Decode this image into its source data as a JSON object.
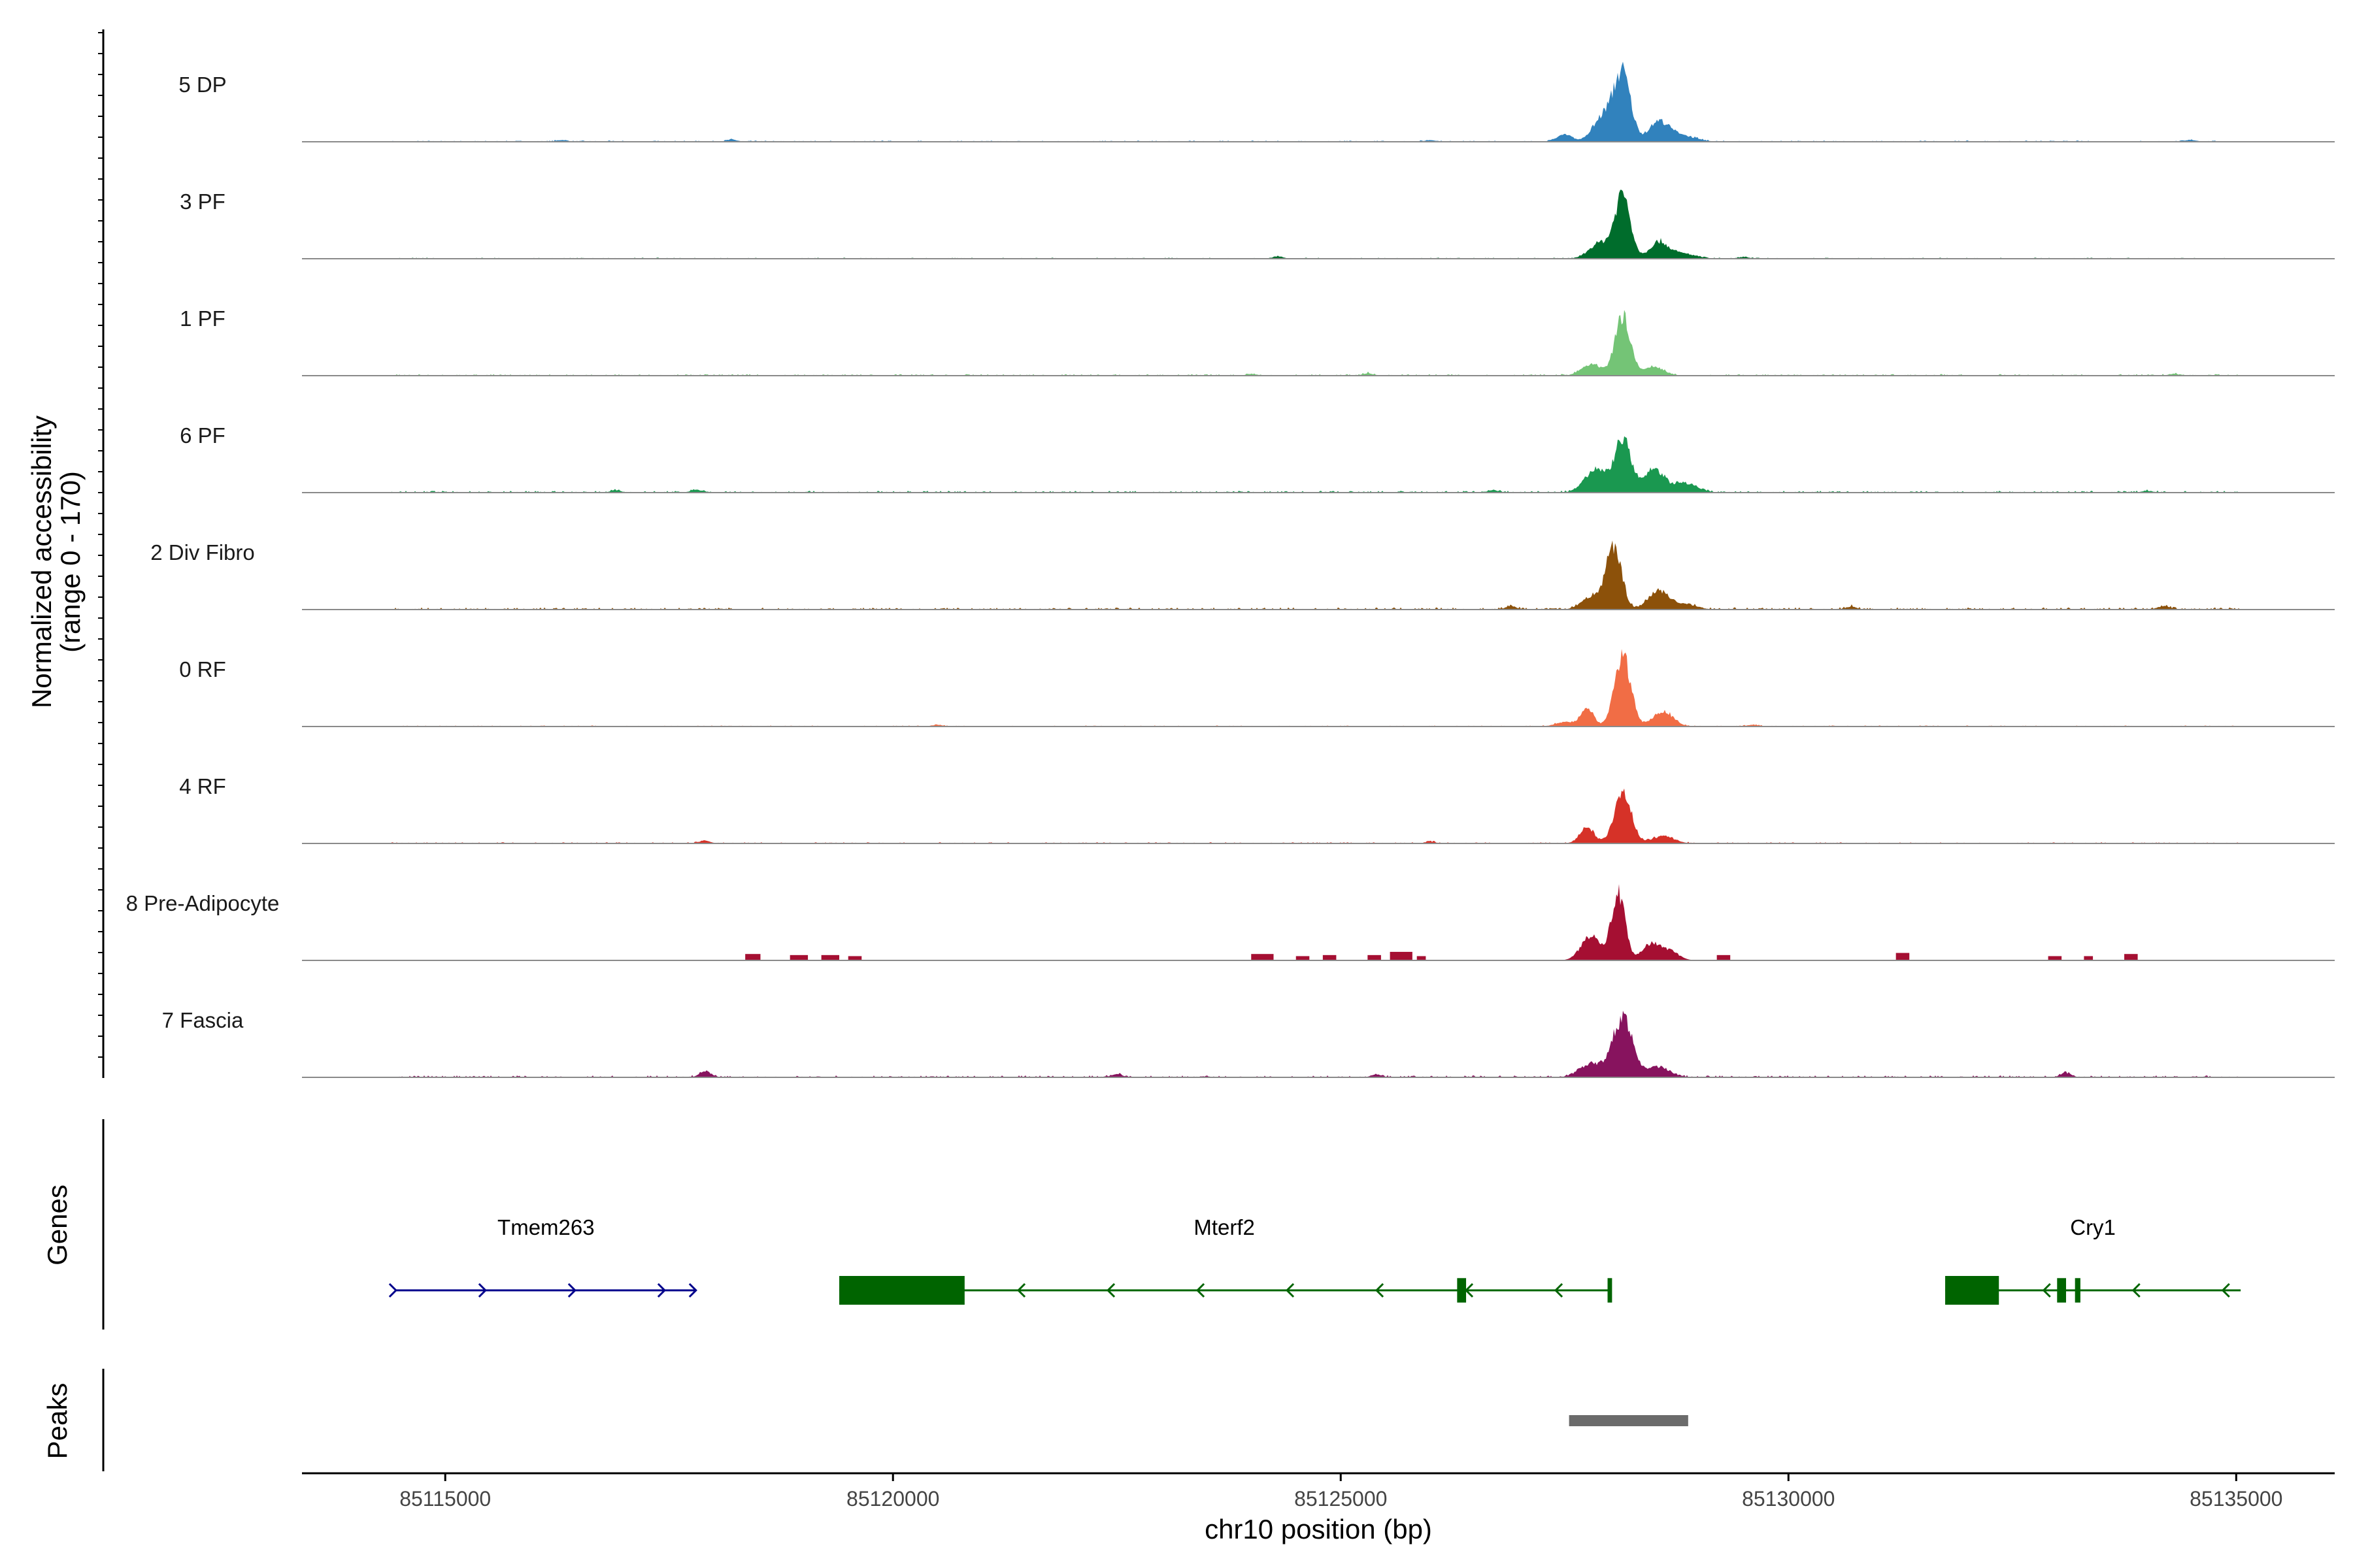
{
  "chart_data": {
    "type": "area",
    "title": "",
    "xlabel": "chr10 position (bp)",
    "ylabel": "Normalized accessibility",
    "ylabel_range": "(range 0 - 170)",
    "ylim": [
      0,
      170
    ],
    "xlim": [
      85113400,
      85136100
    ],
    "x_ticks": [
      {
        "value": 85115000,
        "label": "85115000"
      },
      {
        "value": 85120000,
        "label": "85120000"
      },
      {
        "value": 85125000,
        "label": "85125000"
      },
      {
        "value": 85130000,
        "label": "85130000"
      },
      {
        "value": 85135000,
        "label": "85135000"
      }
    ],
    "tracks": [
      {
        "name": "5 DP",
        "color": "#3182bd",
        "peaks": [
          [
            85128150,
            0.6,
            90
          ],
          [
            85127950,
            0.25,
            120
          ],
          [
            85128550,
            0.18,
            110
          ],
          [
            85127500,
            0.07,
            80
          ],
          [
            85128800,
            0.06,
            150
          ]
        ],
        "background": 0.012,
        "blips": [
          [
            85116300,
            0.015
          ],
          [
            85118200,
            0.018
          ],
          [
            85126000,
            0.015
          ],
          [
            85134500,
            0.015
          ]
        ]
      },
      {
        "name": "3 PF",
        "color": "#006d2c",
        "peaks": [
          [
            85128150,
            0.6,
            85
          ],
          [
            85127900,
            0.15,
            120
          ],
          [
            85128550,
            0.15,
            100
          ],
          [
            85128800,
            0.05,
            150
          ]
        ],
        "background": 0.01,
        "blips": [
          [
            85124300,
            0.02
          ],
          [
            85129500,
            0.015
          ]
        ]
      },
      {
        "name": "1 PF",
        "color": "#74c476",
        "peaks": [
          [
            85128150,
            0.56,
            85
          ],
          [
            85127800,
            0.1,
            110
          ],
          [
            85128500,
            0.08,
            110
          ]
        ],
        "background": 0.015,
        "blips": [
          [
            85124000,
            0.015
          ],
          [
            85125300,
            0.02
          ],
          [
            85134300,
            0.015
          ]
        ]
      },
      {
        "name": "6 PF",
        "color": "#1a9850",
        "peaks": [
          [
            85128150,
            0.5,
            90
          ],
          [
            85127850,
            0.22,
            120
          ],
          [
            85128500,
            0.22,
            110
          ],
          [
            85128850,
            0.09,
            130
          ]
        ],
        "background": 0.018,
        "blips": [
          [
            85116900,
            0.02
          ],
          [
            85117800,
            0.025
          ],
          [
            85126700,
            0.02
          ],
          [
            85134000,
            0.015
          ]
        ]
      },
      {
        "name": "2 Div Fibro",
        "color": "#8c510a",
        "peaks": [
          [
            85128050,
            0.6,
            85
          ],
          [
            85127800,
            0.12,
            110
          ],
          [
            85128550,
            0.18,
            110
          ],
          [
            85128850,
            0.05,
            120
          ]
        ],
        "background": 0.02,
        "blips": [
          [
            85126900,
            0.03
          ],
          [
            85130700,
            0.025
          ],
          [
            85134200,
            0.03
          ]
        ]
      },
      {
        "name": "0 RF",
        "color": "#f16d45",
        "peaks": [
          [
            85128150,
            0.65,
            90
          ],
          [
            85127750,
            0.18,
            70
          ],
          [
            85128600,
            0.14,
            110
          ],
          [
            85127500,
            0.04,
            100
          ]
        ],
        "background": 0.01,
        "blips": [
          [
            85120500,
            0.015
          ],
          [
            85129600,
            0.015
          ]
        ]
      },
      {
        "name": "4 RF",
        "color": "#d63228",
        "peaks": [
          [
            85128150,
            0.47,
            95
          ],
          [
            85127750,
            0.15,
            80
          ],
          [
            85128600,
            0.07,
            120
          ]
        ],
        "background": 0.012,
        "blips": [
          [
            85117900,
            0.025
          ],
          [
            85126000,
            0.015
          ]
        ]
      },
      {
        "name": "8 Pre-Adipocyte",
        "color": "#a50f32",
        "peaks": [
          [
            85128100,
            0.62,
            75
          ],
          [
            85127800,
            0.24,
            110
          ],
          [
            85128450,
            0.14,
            90
          ],
          [
            85128650,
            0.1,
            110
          ]
        ],
        "background": 0.0,
        "blocks": [
          [
            85118350,
            85118520,
            0.06
          ],
          [
            85118850,
            85119050,
            0.05
          ],
          [
            85119200,
            85119400,
            0.05
          ],
          [
            85119500,
            85119650,
            0.04
          ],
          [
            85124000,
            85124250,
            0.06
          ],
          [
            85124500,
            85124650,
            0.04
          ],
          [
            85124800,
            85124950,
            0.05
          ],
          [
            85125300,
            85125450,
            0.05
          ],
          [
            85125550,
            85125800,
            0.08
          ],
          [
            85125850,
            85125950,
            0.04
          ],
          [
            85129200,
            85129350,
            0.05
          ],
          [
            85131200,
            85131350,
            0.07
          ],
          [
            85132900,
            85133050,
            0.04
          ],
          [
            85133300,
            85133400,
            0.04
          ],
          [
            85133750,
            85133900,
            0.06
          ]
        ]
      },
      {
        "name": "7 Fascia",
        "color": "#87135e",
        "peaks": [
          [
            85128150,
            0.55,
            110
          ],
          [
            85127800,
            0.12,
            130
          ],
          [
            85128550,
            0.1,
            120
          ]
        ],
        "background": 0.018,
        "blips": [
          [
            85117900,
            0.06
          ],
          [
            85122500,
            0.03
          ],
          [
            85125400,
            0.025
          ],
          [
            85133100,
            0.04
          ]
        ]
      }
    ],
    "genes": [
      {
        "name": "Tmem263",
        "strand": "+",
        "start": 85114450,
        "end": 85117800,
        "color": "#00008b",
        "exons": [],
        "arrows": [
          85114450,
          85115450,
          85116450,
          85117450,
          85117800
        ]
      },
      {
        "name": "Mterf2",
        "strand": "-",
        "start": 85119400,
        "end": 85128000,
        "color": "#006400",
        "exons": [
          [
            85119400,
            85120800,
            1.0
          ],
          [
            85126300,
            85126400,
            0.85
          ],
          [
            85127980,
            85128030,
            0.85
          ]
        ],
        "arrows": [
          85121400,
          85122400,
          85123400,
          85124400,
          85125400,
          85126400,
          85127400
        ]
      },
      {
        "name": "Cry1",
        "strand": "-",
        "start": 85131750,
        "end": 85135050,
        "color": "#006400",
        "exons": [
          [
            85131750,
            85132350,
            1.0
          ],
          [
            85133000,
            85133100,
            0.85
          ],
          [
            85133200,
            85133260,
            0.85
          ]
        ],
        "arrows": [
          85132850,
          85133850,
          85134850
        ]
      }
    ],
    "gene_track_label": "Genes",
    "peaks_track_label": "Peaks",
    "peak_regions": [
      [
        85127550,
        85128880
      ]
    ]
  }
}
